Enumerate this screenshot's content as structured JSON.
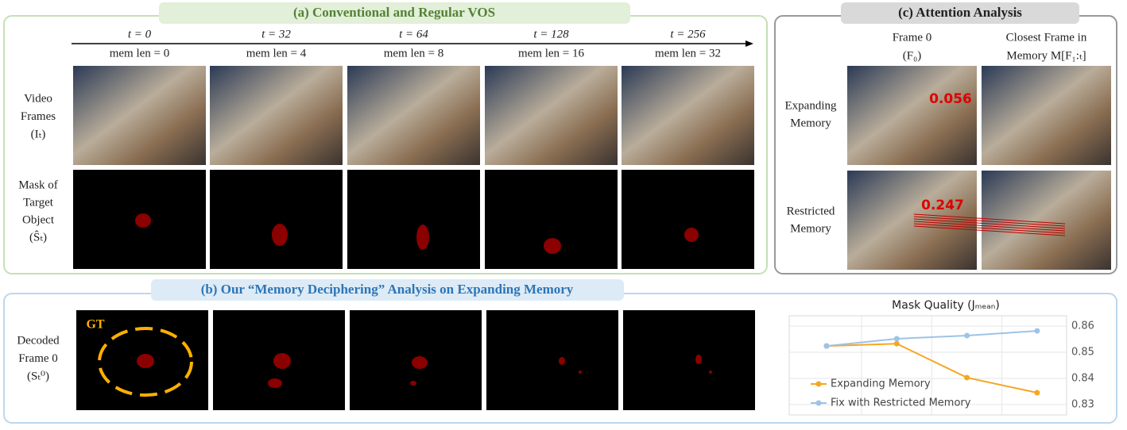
{
  "panel_a": {
    "title": "(a) Conventional and Regular VOS",
    "columns": [
      {
        "time": "t = 0",
        "memory": "mem len = 0"
      },
      {
        "time": "t = 32",
        "memory": "mem len = 4"
      },
      {
        "time": "t = 64",
        "memory": "mem len = 8"
      },
      {
        "time": "t = 128",
        "memory": "mem len = 16"
      },
      {
        "time": "t = 256",
        "memory": "mem len = 32"
      }
    ],
    "row_labels": [
      [
        "Video",
        "Frames",
        "(Iₜ)"
      ],
      [
        "Mask of",
        "Target",
        "Object",
        "(Ŝₜ)"
      ]
    ]
  },
  "panel_b": {
    "title": "(b) Our “Memory Deciphering” Analysis on Expanding Memory",
    "row_label": [
      "Decoded",
      "Frame 0",
      "(Sₜ⁰)"
    ],
    "gt_label": "GT"
  },
  "panel_c": {
    "title": "(c) Attention Analysis",
    "columns": [
      [
        "Frame 0",
        "(F₀)"
      ],
      [
        "Closest Frame in",
        "Memory M[F₁:ₜ]"
      ]
    ],
    "row_labels": [
      [
        "Expanding",
        "Memory"
      ],
      [
        "Restricted",
        "Memory"
      ]
    ],
    "scores": [
      "0.056",
      "0.247"
    ]
  },
  "chart_data": {
    "type": "line",
    "title": "Mask Quality (Jₘₑₐₙ)",
    "categories": [
      null,
      null,
      null,
      null
    ],
    "series": [
      {
        "name": "Expanding Memory",
        "color": "#f5a623",
        "values": [
          0.8524,
          0.8533,
          0.8403,
          0.8345
        ]
      },
      {
        "name": "Fix with Restricted Memory",
        "color": "#9dc3e6",
        "values": [
          0.8524,
          0.8552,
          0.8564,
          0.8582
        ]
      }
    ],
    "ylim": [
      0.826,
      0.864
    ],
    "yticks": [
      0.83,
      0.84,
      0.85,
      0.86
    ],
    "grid": true,
    "legend": "lower left"
  }
}
